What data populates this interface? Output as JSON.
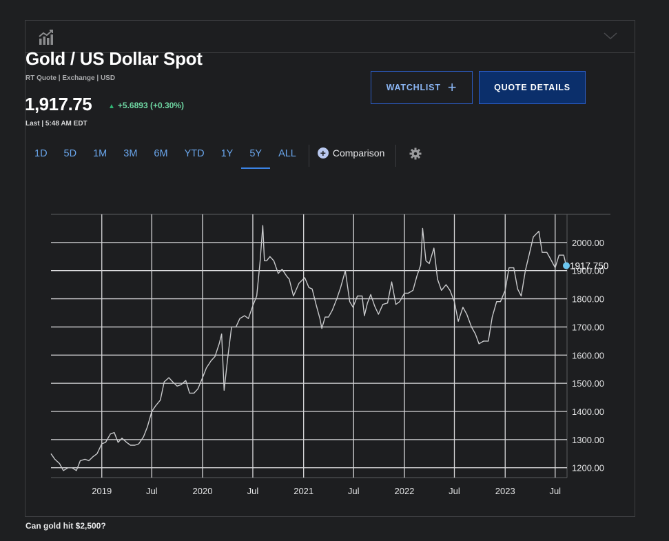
{
  "header": {
    "chart_icon": "chart-bars-up-icon",
    "collapse_icon": "chevron-down-icon"
  },
  "quote": {
    "title": "Gold / US Dollar Spot",
    "subline": "RT Quote | Exchange | USD",
    "price": "1,917.75",
    "change": "+5.6893 (+0.30%)",
    "last": "Last | 5:48 AM EDT",
    "up_color": "#2fb573"
  },
  "buttons": {
    "watchlist": "WATCHLIST",
    "quote_details": "QUOTE DETAILS"
  },
  "ranges": [
    "1D",
    "5D",
    "1M",
    "3M",
    "6M",
    "YTD",
    "1Y",
    "5Y",
    "ALL"
  ],
  "active_range": "5Y",
  "comparison_label": "Comparison",
  "settings_icon": "gear-icon",
  "footer_link": "Can gold hit $2,500?",
  "chart_data": {
    "type": "line",
    "series": [
      {
        "x": [
          "2018-07-01",
          "2018-07-15",
          "2018-08-01",
          "2018-08-15",
          "2018-09-01",
          "2018-09-15",
          "2018-10-01",
          "2018-10-15",
          "2018-11-01",
          "2018-11-15",
          "2018-12-01",
          "2018-12-15",
          "2019-01-01",
          "2019-01-15",
          "2019-02-01",
          "2019-02-15",
          "2019-03-01",
          "2019-03-15",
          "2019-04-01",
          "2019-04-15",
          "2019-05-01",
          "2019-05-15",
          "2019-06-01",
          "2019-06-15",
          "2019-07-01",
          "2019-07-15",
          "2019-08-01",
          "2019-08-15",
          "2019-09-01",
          "2019-09-15",
          "2019-10-01",
          "2019-10-15",
          "2019-11-01",
          "2019-11-15",
          "2019-12-01",
          "2019-12-15",
          "2020-01-01",
          "2020-01-15",
          "2020-02-01",
          "2020-02-15",
          "2020-03-01",
          "2020-03-10",
          "2020-03-19",
          "2020-04-01",
          "2020-04-15",
          "2020-05-01",
          "2020-05-15",
          "2020-06-01",
          "2020-06-15",
          "2020-07-01",
          "2020-07-15",
          "2020-07-27",
          "2020-08-06",
          "2020-08-12",
          "2020-08-20",
          "2020-09-01",
          "2020-09-15",
          "2020-10-01",
          "2020-10-15",
          "2020-11-01",
          "2020-11-10",
          "2020-11-25",
          "2020-12-15",
          "2021-01-05",
          "2021-01-20",
          "2021-02-01",
          "2021-02-15",
          "2021-03-01",
          "2021-03-08",
          "2021-03-20",
          "2021-04-01",
          "2021-04-15",
          "2021-05-01",
          "2021-05-15",
          "2021-06-01",
          "2021-06-17",
          "2021-06-29",
          "2021-07-15",
          "2021-08-01",
          "2021-08-09",
          "2021-08-20",
          "2021-09-01",
          "2021-09-15",
          "2021-09-29",
          "2021-10-15",
          "2021-11-01",
          "2021-11-16",
          "2021-12-01",
          "2021-12-15",
          "2022-01-01",
          "2022-01-15",
          "2022-02-01",
          "2022-02-15",
          "2022-03-01",
          "2022-03-08",
          "2022-03-20",
          "2022-04-01",
          "2022-04-18",
          "2022-05-01",
          "2022-05-15",
          "2022-06-01",
          "2022-06-15",
          "2022-07-01",
          "2022-07-15",
          "2022-08-01",
          "2022-08-15",
          "2022-09-01",
          "2022-09-15",
          "2022-09-28",
          "2022-10-15",
          "2022-11-01",
          "2022-11-15",
          "2022-12-01",
          "2022-12-15",
          "2023-01-01",
          "2023-01-15",
          "2023-02-01",
          "2023-02-15",
          "2023-02-28",
          "2023-03-15",
          "2023-04-01",
          "2023-04-13",
          "2023-05-03",
          "2023-05-15",
          "2023-06-01",
          "2023-06-15",
          "2023-07-01",
          "2023-07-15",
          "2023-08-01",
          "2023-08-10"
        ],
        "y": [
          1250,
          1230,
          1215,
          1190,
          1200,
          1200,
          1190,
          1225,
          1230,
          1225,
          1240,
          1250,
          1285,
          1290,
          1320,
          1325,
          1290,
          1305,
          1290,
          1280,
          1280,
          1285,
          1310,
          1345,
          1400,
          1420,
          1440,
          1505,
          1520,
          1505,
          1490,
          1495,
          1510,
          1465,
          1465,
          1480,
          1520,
          1555,
          1580,
          1595,
          1640,
          1675,
          1475,
          1590,
          1700,
          1700,
          1730,
          1740,
          1730,
          1775,
          1810,
          1930,
          2060,
          1935,
          1935,
          1950,
          1935,
          1890,
          1905,
          1880,
          1870,
          1810,
          1855,
          1875,
          1840,
          1835,
          1780,
          1730,
          1695,
          1735,
          1735,
          1760,
          1800,
          1840,
          1900,
          1790,
          1770,
          1810,
          1810,
          1740,
          1785,
          1815,
          1775,
          1745,
          1780,
          1785,
          1860,
          1780,
          1790,
          1820,
          1820,
          1830,
          1880,
          1920,
          2050,
          1935,
          1925,
          1980,
          1870,
          1830,
          1850,
          1830,
          1790,
          1720,
          1770,
          1745,
          1700,
          1675,
          1640,
          1650,
          1650,
          1735,
          1790,
          1790,
          1830,
          1910,
          1910,
          1835,
          1810,
          1900,
          1970,
          2020,
          2040,
          1965,
          1965,
          1940,
          1910,
          1955,
          1955,
          1917.75
        ]
      }
    ],
    "x_ticks": [
      "2019",
      "Jul",
      "2020",
      "Jul",
      "2021",
      "Jul",
      "2022",
      "Jul",
      "2023",
      "Jul"
    ],
    "y_ticks": [
      2000,
      1900,
      1800,
      1700,
      1600,
      1500,
      1400,
      1300,
      1200
    ],
    "ylim": [
      1165,
      2100
    ],
    "last_value_label": "1917.750",
    "line_color": "#c9cacc",
    "marker_color": "#6cc6f0",
    "grid": true
  }
}
